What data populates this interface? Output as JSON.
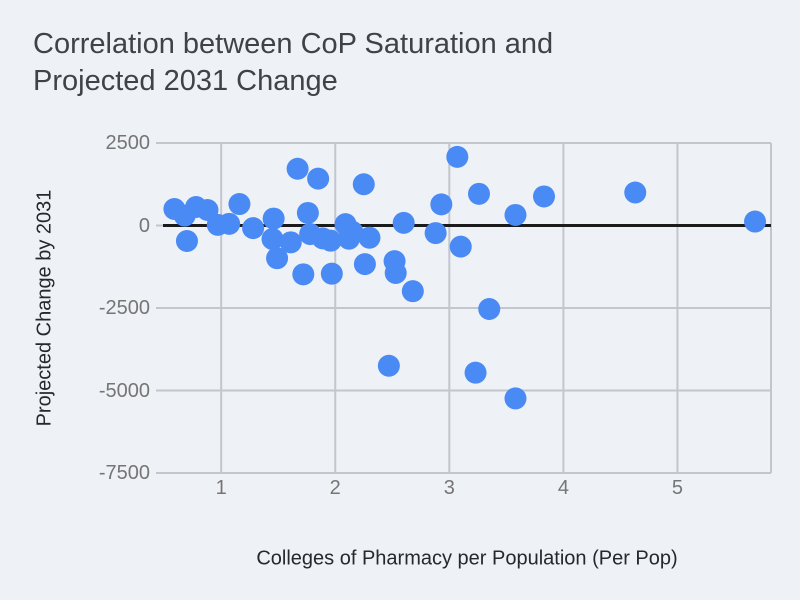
{
  "title": {
    "line1": "Correlation between CoP Saturation and",
    "line2": "Projected 2031 Change"
  },
  "axes": {
    "x_label": "Colleges of Pharmacy per Population (Per Pop)",
    "y_label": "Projected Change by 2031",
    "x_ticks": [
      {
        "value": 1,
        "label": "1"
      },
      {
        "value": 2,
        "label": "2"
      },
      {
        "value": 3,
        "label": "3"
      },
      {
        "value": 4,
        "label": "4"
      },
      {
        "value": 5,
        "label": "5"
      }
    ],
    "y_ticks": [
      {
        "value": 2500,
        "label": "2500"
      },
      {
        "value": 0,
        "label": "0"
      },
      {
        "value": -2500,
        "label": "-2500"
      },
      {
        "value": -5000,
        "label": "-5000"
      },
      {
        "value": -7500,
        "label": "-7500"
      }
    ]
  },
  "colors": {
    "background": "#eef1f6",
    "title_text": "#3f4347",
    "axis_text": "#24292e",
    "tick_text": "#757575",
    "grid": "#c3c7cd",
    "zero_line": "#1b1b1b",
    "dot": "#4a8af4"
  },
  "chart_data": {
    "type": "scatter",
    "title": "Correlation between CoP Saturation and Projected 2031 Change",
    "xlabel": "Colleges of Pharmacy per Population (Per Pop)",
    "ylabel": "Projected Change by 2031",
    "xlim": [
      0.49,
      5.82
    ],
    "ylim": [
      -7500,
      2500
    ],
    "grid": true,
    "zero_line": true,
    "legend_position": "none",
    "series": [
      {
        "name": "Projected Change by 2031",
        "color": "#4a8af4",
        "points": [
          [
            0.59,
            500
          ],
          [
            0.68,
            300
          ],
          [
            0.7,
            -470
          ],
          [
            0.78,
            560
          ],
          [
            0.88,
            470
          ],
          [
            0.97,
            20
          ],
          [
            1.07,
            50
          ],
          [
            1.16,
            650
          ],
          [
            1.28,
            -80
          ],
          [
            1.45,
            -410
          ],
          [
            1.46,
            210
          ],
          [
            1.49,
            -990
          ],
          [
            1.61,
            -510
          ],
          [
            1.67,
            1720
          ],
          [
            1.72,
            -1480
          ],
          [
            1.76,
            380
          ],
          [
            1.78,
            -260
          ],
          [
            1.85,
            1420
          ],
          [
            1.89,
            -390
          ],
          [
            1.96,
            -460
          ],
          [
            1.97,
            -1460
          ],
          [
            2.09,
            40
          ],
          [
            2.12,
            -400
          ],
          [
            2.15,
            -190
          ],
          [
            2.25,
            1250
          ],
          [
            2.26,
            -1170
          ],
          [
            2.3,
            -370
          ],
          [
            2.47,
            -4250
          ],
          [
            2.52,
            -1080
          ],
          [
            2.53,
            -1440
          ],
          [
            2.6,
            80
          ],
          [
            2.68,
            -1990
          ],
          [
            2.88,
            -230
          ],
          [
            2.93,
            640
          ],
          [
            3.07,
            2080
          ],
          [
            3.1,
            -640
          ],
          [
            3.23,
            -4460
          ],
          [
            3.26,
            960
          ],
          [
            3.35,
            -2530
          ],
          [
            3.58,
            320
          ],
          [
            3.58,
            -5240
          ],
          [
            3.83,
            880
          ],
          [
            4.63,
            1000
          ],
          [
            5.68,
            120
          ]
        ]
      }
    ]
  }
}
